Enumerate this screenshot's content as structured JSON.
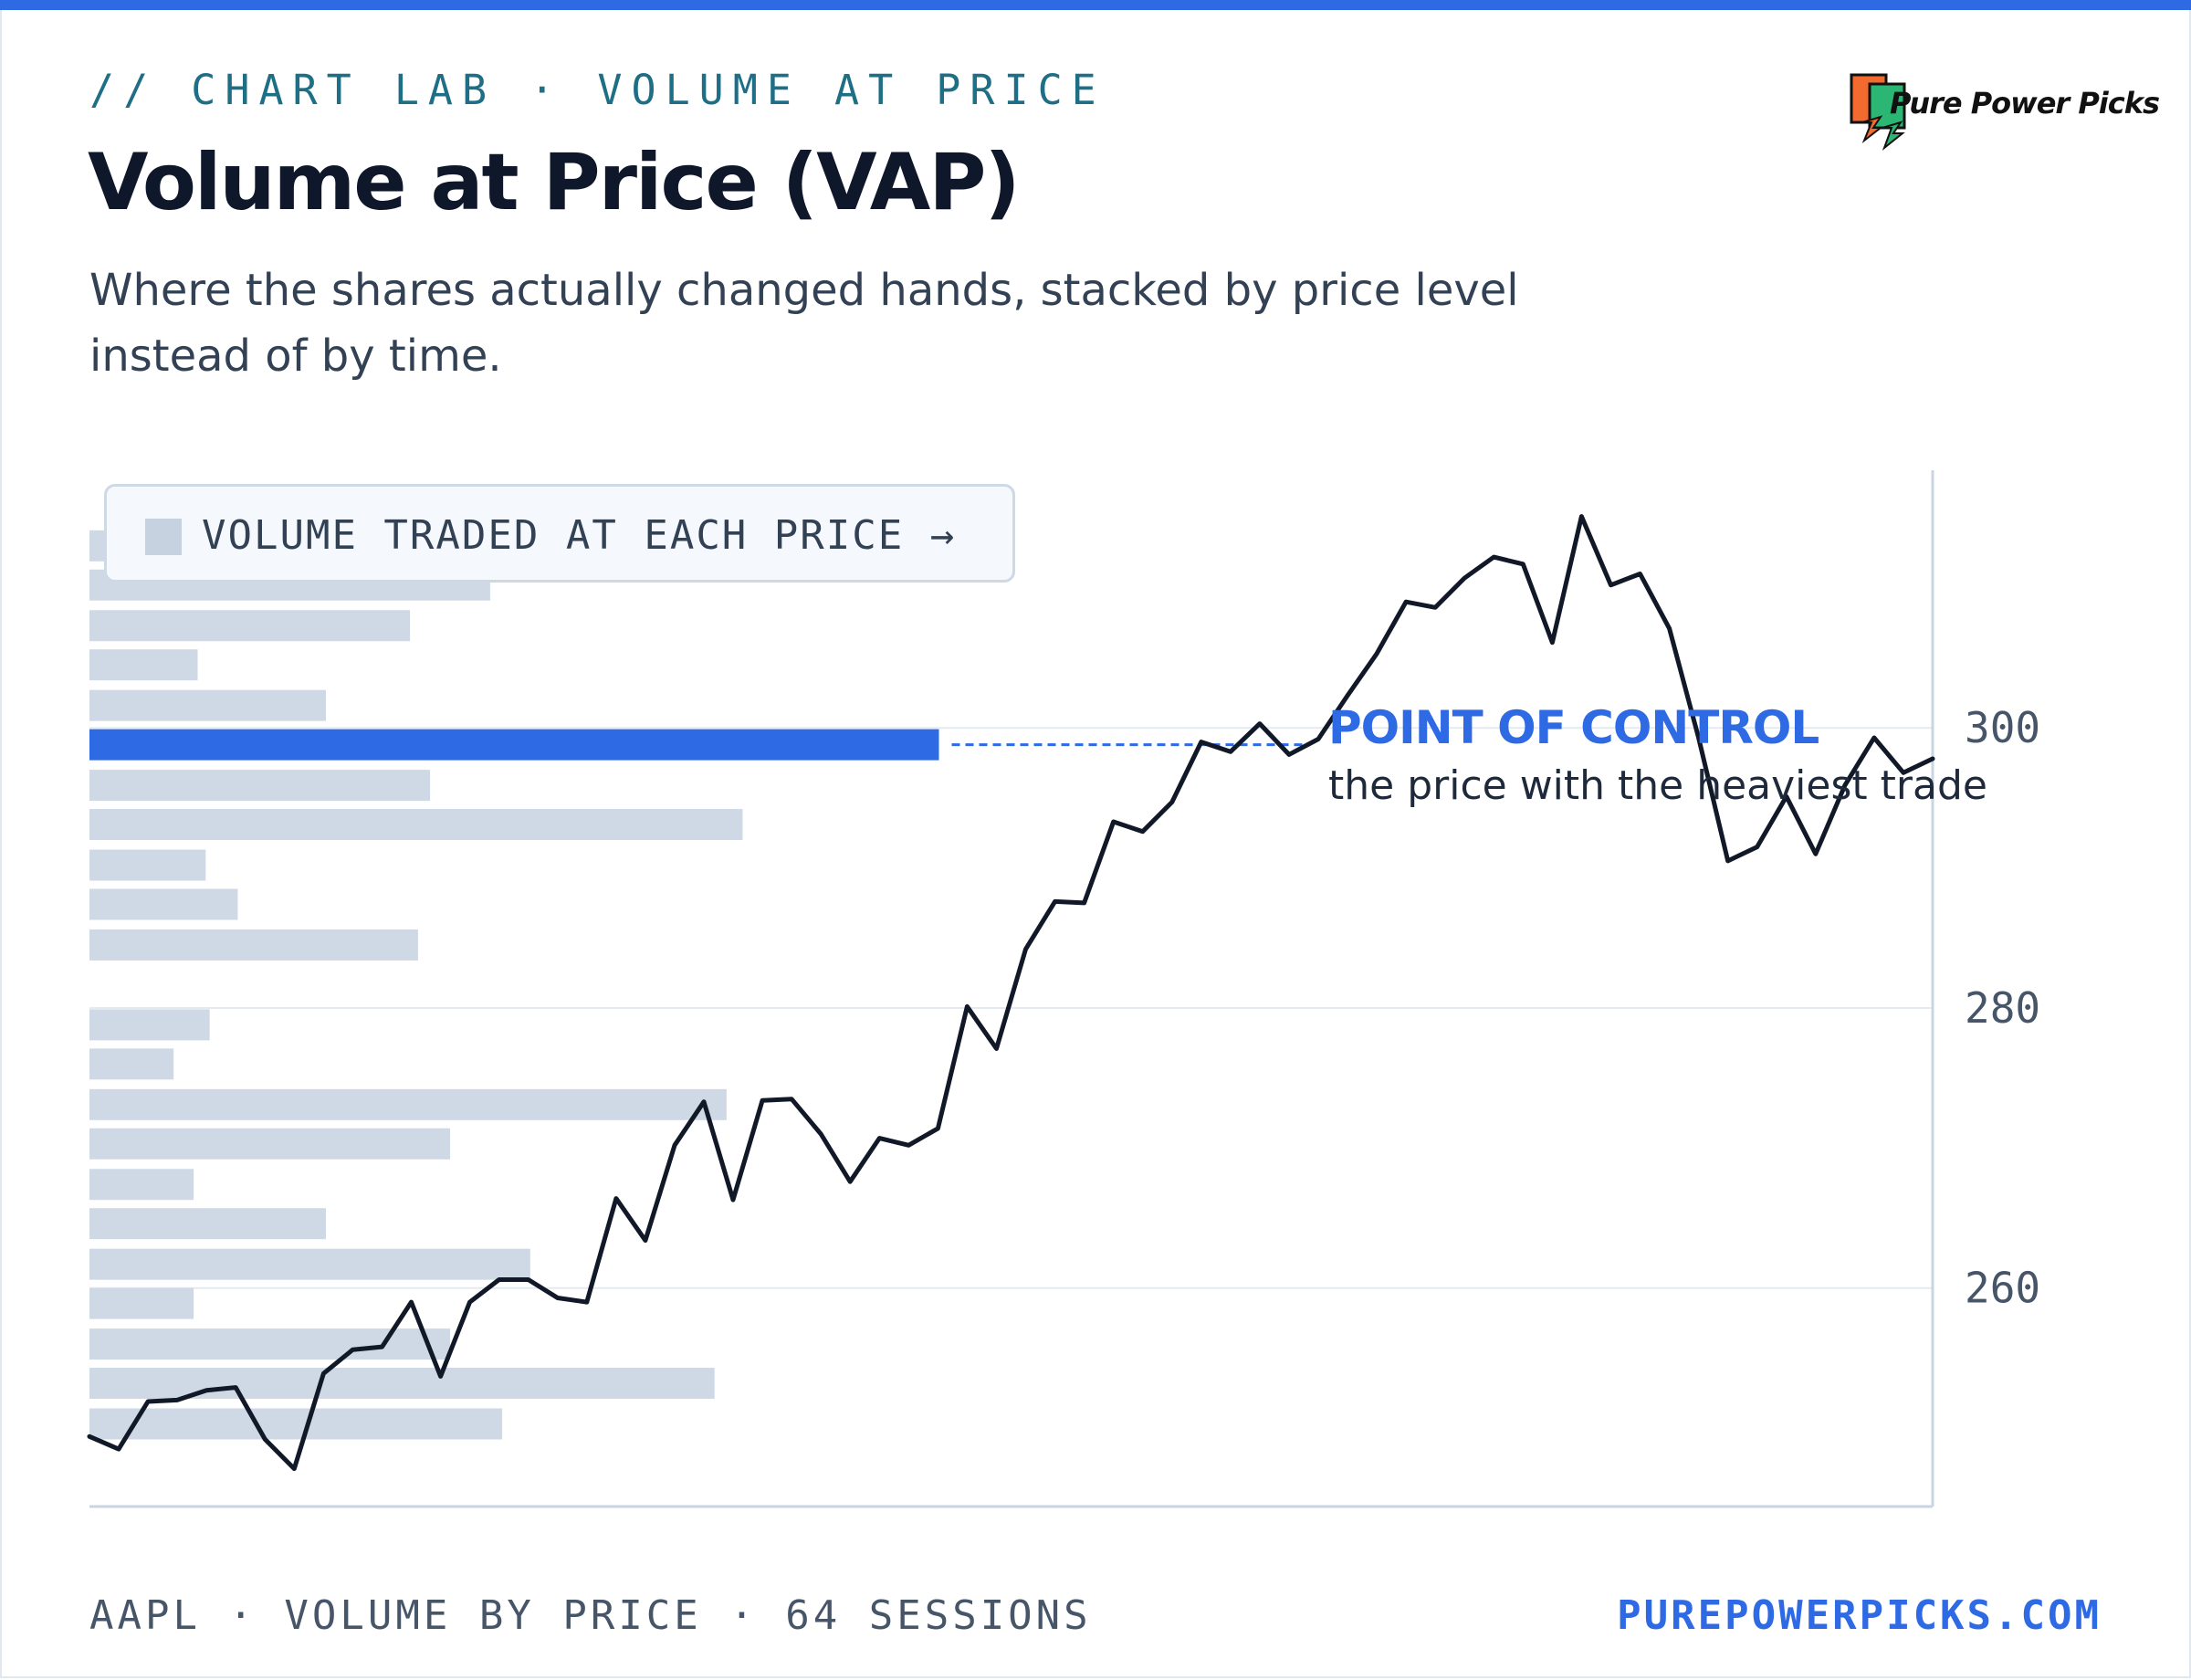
{
  "header": {
    "eyebrow": "// CHART LAB · VOLUME AT PRICE",
    "title": "Volume at Price (VAP)",
    "subtitle": "Where the shares actually changed hands, stacked by price level instead of by time."
  },
  "logo": {
    "text": "Pure Power Picks",
    "colors": [
      "#f26a2e",
      "#2bb673",
      "#111111"
    ]
  },
  "legend": {
    "label": "VOLUME TRADED AT EACH PRICE →",
    "swatch_color": "#c7d2e0"
  },
  "annotation": {
    "title": "POINT OF CONTROL",
    "subtitle": "the price with the heaviest trade",
    "color": "#2f6ae5"
  },
  "footer": {
    "left": "AAPL · VOLUME BY PRICE · 64 SESSIONS",
    "right": "PUREPOWERPICKS.COM"
  },
  "colors": {
    "accent": "#2f6ae5",
    "bar": "#cfd9e6",
    "line": "#111827",
    "grid": "#e5eaf1",
    "axis": "#cbd5e1",
    "tick_text": "#475569"
  },
  "chart_data": {
    "type": "line",
    "title": "Volume at Price (VAP)",
    "xlabel": "",
    "ylabel": "",
    "ylim": [
      244.4,
      318.4
    ],
    "yticks": [
      260,
      280,
      300
    ],
    "ytick_labels": [
      "260",
      "280",
      "300"
    ],
    "grid": true,
    "legend": "top-left",
    "series": [
      {
        "type": "line",
        "values": [
          249.4,
          248.5,
          251.9,
          252.0,
          252.7,
          252.9,
          249.2,
          247.1,
          253.9,
          255.6,
          255.8,
          259.0,
          253.7,
          259.0,
          260.6,
          260.6,
          259.3,
          259.0,
          266.4,
          263.4,
          270.2,
          273.3,
          266.3,
          273.4,
          273.5,
          271.0,
          267.6,
          270.7,
          270.2,
          271.4,
          280.1,
          277.1,
          284.2,
          287.6,
          287.5,
          293.3,
          292.6,
          294.7,
          299.0,
          298.3,
          300.3,
          298.1,
          299.2,
          302.3,
          305.3,
          309.0,
          308.6,
          310.7,
          312.2,
          311.7,
          306.1,
          315.1,
          310.2,
          311.0,
          307.1,
          299.3,
          290.5,
          291.5,
          295.1,
          291.0,
          295.9,
          299.3,
          296.8,
          297.8
        ]
      }
    ],
    "volume_profile": [
      {
        "price": 313.0,
        "volume": 22
      },
      {
        "price": 310.2,
        "volume": 100
      },
      {
        "price": 307.3,
        "volume": 80
      },
      {
        "price": 304.5,
        "volume": 27
      },
      {
        "price": 301.6,
        "volume": 59
      },
      {
        "price": 298.8,
        "volume": 212,
        "poc": true
      },
      {
        "price": 295.9,
        "volume": 85
      },
      {
        "price": 293.1,
        "volume": 163
      },
      {
        "price": 290.2,
        "volume": 29
      },
      {
        "price": 287.4,
        "volume": 37
      },
      {
        "price": 284.5,
        "volume": 82
      },
      {
        "price": 278.8,
        "volume": 30
      },
      {
        "price": 276.0,
        "volume": 21
      },
      {
        "price": 273.1,
        "volume": 159
      },
      {
        "price": 270.3,
        "volume": 90
      },
      {
        "price": 267.4,
        "volume": 26
      },
      {
        "price": 264.6,
        "volume": 59
      },
      {
        "price": 261.7,
        "volume": 110
      },
      {
        "price": 258.9,
        "volume": 26
      },
      {
        "price": 256.0,
        "volume": 90
      },
      {
        "price": 253.2,
        "volume": 156
      },
      {
        "price": 250.3,
        "volume": 103
      }
    ],
    "volume_scale_max": 460
  }
}
